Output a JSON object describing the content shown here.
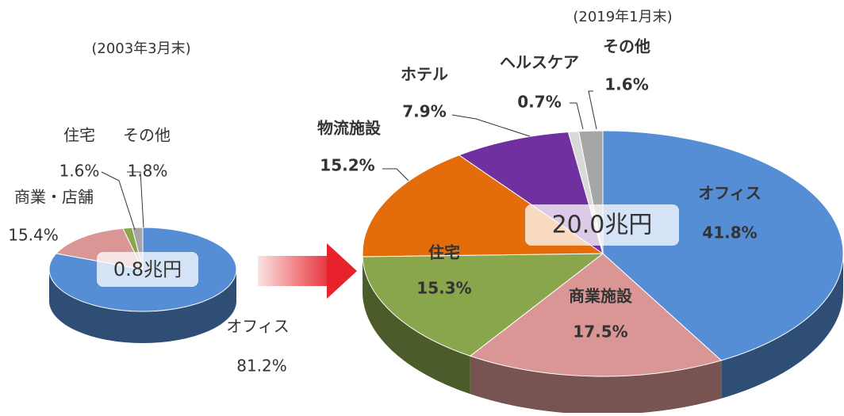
{
  "chart_data": [
    {
      "type": "pie",
      "title": "(2003年3月末)",
      "center_label": "0.8兆円",
      "categories": [
        "オフィス",
        "商業・店舗",
        "住宅",
        "その他"
      ],
      "values": [
        81.2,
        15.4,
        1.6,
        1.8
      ],
      "value_labels": [
        "81.2%",
        "15.4%",
        "1.6%",
        "1.8%"
      ],
      "colors": [
        "#558ed5",
        "#d99694",
        "#8aa64c",
        "#a6a6a6"
      ]
    },
    {
      "type": "pie",
      "title": "(2019年1月末)",
      "center_label": "20.0兆円",
      "categories": [
        "オフィス",
        "商業施設",
        "住宅",
        "物流施設",
        "ホテル",
        "ヘルスケア",
        "その他"
      ],
      "values": [
        41.8,
        17.5,
        15.3,
        15.2,
        7.9,
        0.7,
        1.6
      ],
      "value_labels": [
        "41.8%",
        "17.5%",
        "15.3%",
        "15.2%",
        "7.9%",
        "0.7%",
        "1.6%"
      ],
      "colors": [
        "#558ed5",
        "#d99694",
        "#8aa64c",
        "#e46c0a",
        "#7030a0",
        "#d9d9d9",
        "#a6a6a6"
      ]
    }
  ]
}
